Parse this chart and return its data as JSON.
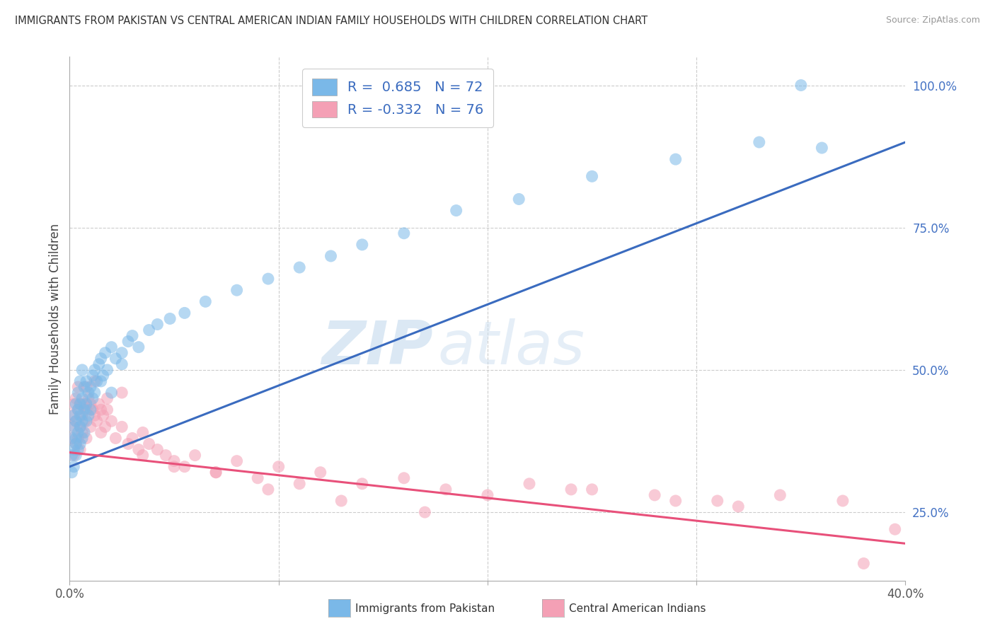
{
  "title": "IMMIGRANTS FROM PAKISTAN VS CENTRAL AMERICAN INDIAN FAMILY HOUSEHOLDS WITH CHILDREN CORRELATION CHART",
  "source": "Source: ZipAtlas.com",
  "ylabel": "Family Households with Children",
  "x_min": 0.0,
  "x_max": 0.4,
  "y_min": 0.13,
  "y_max": 1.05,
  "y_ticks_right": [
    0.25,
    0.5,
    0.75,
    1.0
  ],
  "y_tick_labels_right": [
    "25.0%",
    "50.0%",
    "75.0%",
    "100.0%"
  ],
  "blue_R": 0.685,
  "blue_N": 72,
  "pink_R": -0.332,
  "pink_N": 76,
  "blue_color": "#7ab8e8",
  "pink_color": "#f4a0b5",
  "blue_line_color": "#3a6bbf",
  "pink_line_color": "#e8507a",
  "legend_label_blue": "Immigrants from Pakistan",
  "legend_label_pink": "Central American Indians",
  "watermark_zip": "ZIP",
  "watermark_atlas": "atlas",
  "blue_line_x0": 0.0,
  "blue_line_y0": 0.33,
  "blue_line_x1": 0.4,
  "blue_line_y1": 0.9,
  "pink_line_x0": 0.0,
  "pink_line_y0": 0.355,
  "pink_line_x1": 0.4,
  "pink_line_y1": 0.195,
  "blue_scatter_x": [
    0.001,
    0.001,
    0.001,
    0.002,
    0.002,
    0.002,
    0.002,
    0.003,
    0.003,
    0.003,
    0.003,
    0.003,
    0.004,
    0.004,
    0.004,
    0.004,
    0.005,
    0.005,
    0.005,
    0.005,
    0.005,
    0.006,
    0.006,
    0.006,
    0.006,
    0.007,
    0.007,
    0.007,
    0.008,
    0.008,
    0.008,
    0.009,
    0.009,
    0.01,
    0.01,
    0.011,
    0.011,
    0.012,
    0.012,
    0.013,
    0.014,
    0.015,
    0.016,
    0.017,
    0.018,
    0.02,
    0.022,
    0.025,
    0.028,
    0.03,
    0.033,
    0.038,
    0.042,
    0.048,
    0.055,
    0.065,
    0.08,
    0.095,
    0.11,
    0.125,
    0.14,
    0.16,
    0.185,
    0.215,
    0.25,
    0.29,
    0.33,
    0.36,
    0.015,
    0.02,
    0.025,
    0.35
  ],
  "blue_scatter_y": [
    0.35,
    0.38,
    0.32,
    0.36,
    0.4,
    0.33,
    0.42,
    0.38,
    0.35,
    0.41,
    0.44,
    0.37,
    0.39,
    0.43,
    0.36,
    0.46,
    0.4,
    0.44,
    0.37,
    0.48,
    0.42,
    0.41,
    0.45,
    0.38,
    0.5,
    0.43,
    0.47,
    0.39,
    0.44,
    0.48,
    0.41,
    0.46,
    0.42,
    0.47,
    0.43,
    0.49,
    0.45,
    0.5,
    0.46,
    0.48,
    0.51,
    0.52,
    0.49,
    0.53,
    0.5,
    0.54,
    0.52,
    0.53,
    0.55,
    0.56,
    0.54,
    0.57,
    0.58,
    0.59,
    0.6,
    0.62,
    0.64,
    0.66,
    0.68,
    0.7,
    0.72,
    0.74,
    0.78,
    0.8,
    0.84,
    0.87,
    0.9,
    0.89,
    0.48,
    0.46,
    0.51,
    1.0
  ],
  "pink_scatter_x": [
    0.001,
    0.001,
    0.002,
    0.002,
    0.002,
    0.003,
    0.003,
    0.003,
    0.004,
    0.004,
    0.004,
    0.005,
    0.005,
    0.005,
    0.006,
    0.006,
    0.007,
    0.007,
    0.008,
    0.008,
    0.009,
    0.01,
    0.01,
    0.011,
    0.012,
    0.013,
    0.014,
    0.015,
    0.015,
    0.016,
    0.017,
    0.018,
    0.02,
    0.022,
    0.025,
    0.028,
    0.03,
    0.033,
    0.035,
    0.038,
    0.042,
    0.046,
    0.05,
    0.055,
    0.06,
    0.07,
    0.08,
    0.09,
    0.1,
    0.11,
    0.12,
    0.14,
    0.16,
    0.18,
    0.2,
    0.22,
    0.25,
    0.28,
    0.31,
    0.34,
    0.37,
    0.395,
    0.008,
    0.012,
    0.018,
    0.025,
    0.035,
    0.05,
    0.07,
    0.095,
    0.13,
    0.17,
    0.24,
    0.29,
    0.32,
    0.38
  ],
  "pink_scatter_y": [
    0.38,
    0.42,
    0.35,
    0.4,
    0.44,
    0.37,
    0.41,
    0.45,
    0.38,
    0.43,
    0.47,
    0.4,
    0.44,
    0.36,
    0.42,
    0.39,
    0.44,
    0.41,
    0.43,
    0.38,
    0.45,
    0.44,
    0.4,
    0.43,
    0.42,
    0.41,
    0.44,
    0.43,
    0.39,
    0.42,
    0.4,
    0.43,
    0.41,
    0.38,
    0.4,
    0.37,
    0.38,
    0.36,
    0.39,
    0.37,
    0.36,
    0.35,
    0.34,
    0.33,
    0.35,
    0.32,
    0.34,
    0.31,
    0.33,
    0.3,
    0.32,
    0.3,
    0.31,
    0.29,
    0.28,
    0.3,
    0.29,
    0.28,
    0.27,
    0.28,
    0.27,
    0.22,
    0.47,
    0.48,
    0.45,
    0.46,
    0.35,
    0.33,
    0.32,
    0.29,
    0.27,
    0.25,
    0.29,
    0.27,
    0.26,
    0.16
  ]
}
